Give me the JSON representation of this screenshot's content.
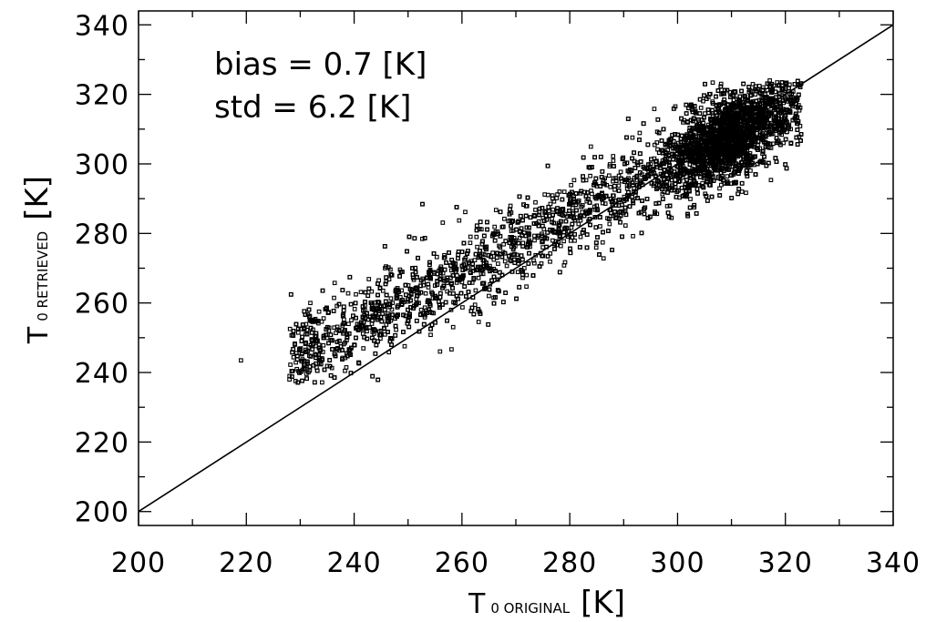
{
  "chart_data": {
    "type": "scatter",
    "title": "",
    "xlabel": {
      "main": "T",
      "sub": "0 ORIGINAL",
      "unit": "[K]"
    },
    "ylabel": {
      "main": "T",
      "sub": "0 RETRIEVED",
      "unit": "[K]"
    },
    "xlim": [
      200,
      340
    ],
    "ylim": [
      196,
      344
    ],
    "xticks": [
      200,
      220,
      240,
      260,
      280,
      300,
      320,
      340
    ],
    "yticks": [
      200,
      220,
      240,
      260,
      280,
      300,
      320,
      340
    ],
    "xtick_labels": [
      "200",
      "220",
      "240",
      "260",
      "280",
      "300",
      "320",
      "340"
    ],
    "ytick_labels": [
      "200",
      "220",
      "240",
      "260",
      "280",
      "300",
      "320",
      "340"
    ],
    "minor_ticks_per_major": 2,
    "reference_line": {
      "type": "identity",
      "from": [
        200,
        200
      ],
      "to": [
        340,
        340
      ]
    },
    "annotations": [
      "bias = 0.7 [K]",
      "std = 6.2 [K]"
    ],
    "grid": false,
    "legend": "none",
    "series": [
      {
        "marker": "hollow-square",
        "approx_points": 7000,
        "bias": 0.7,
        "std": 6.2,
        "x_range": [
          219,
          323
        ],
        "y_range": [
          237,
          324
        ],
        "sample_points": [
          [
            219,
            243.5
          ],
          [
            228,
            238
          ],
          [
            229,
            248
          ],
          [
            231,
            251
          ],
          [
            233,
            245
          ],
          [
            235,
            250
          ],
          [
            238,
            254
          ],
          [
            240,
            248
          ],
          [
            242,
            258
          ],
          [
            245,
            252
          ],
          [
            248,
            262
          ],
          [
            250,
            255
          ],
          [
            252,
            260
          ],
          [
            255,
            265
          ],
          [
            258,
            258
          ],
          [
            260,
            266
          ],
          [
            262,
            270
          ],
          [
            265,
            262
          ],
          [
            268,
            272
          ],
          [
            270,
            278
          ],
          [
            272,
            268
          ],
          [
            275,
            276
          ],
          [
            278,
            283
          ],
          [
            280,
            285
          ],
          [
            282,
            279
          ],
          [
            285,
            288
          ],
          [
            288,
            295
          ],
          [
            290,
            286
          ],
          [
            292,
            296
          ],
          [
            295,
            300
          ],
          [
            298,
            295
          ],
          [
            300,
            304
          ],
          [
            303,
            308
          ],
          [
            305,
            300
          ],
          [
            307,
            312
          ],
          [
            309,
            316
          ],
          [
            311,
            309
          ],
          [
            313,
            318
          ],
          [
            315,
            312
          ],
          [
            318,
            316
          ],
          [
            320,
            323
          ],
          [
            321,
            310
          ]
        ]
      }
    ]
  }
}
